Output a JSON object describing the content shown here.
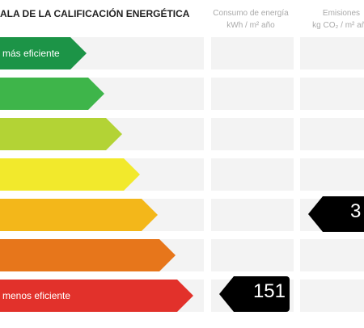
{
  "header": {
    "title": "ALA DE LA CALIFICACIÓN ENERGÉTICA",
    "consumo_line1": "Consumo de energía",
    "consumo_line2": "kWh / m² año",
    "emisiones_line1": "Emisiones",
    "emisiones_line2": "kg CO₂ / m² año"
  },
  "scale": [
    {
      "label": "más eficiente",
      "color": "#1c9447"
    },
    {
      "label": "",
      "color": "#3eb54a"
    },
    {
      "label": "",
      "color": "#b3d335"
    },
    {
      "label": "",
      "color": "#f2e92c"
    },
    {
      "label": "",
      "color": "#f3b71a"
    },
    {
      "label": "",
      "color": "#e7761b"
    },
    {
      "label": "menos eficiente",
      "color": "#e2312b"
    }
  ],
  "ratings": {
    "consumo_value": "151",
    "emisiones_value": "3"
  }
}
